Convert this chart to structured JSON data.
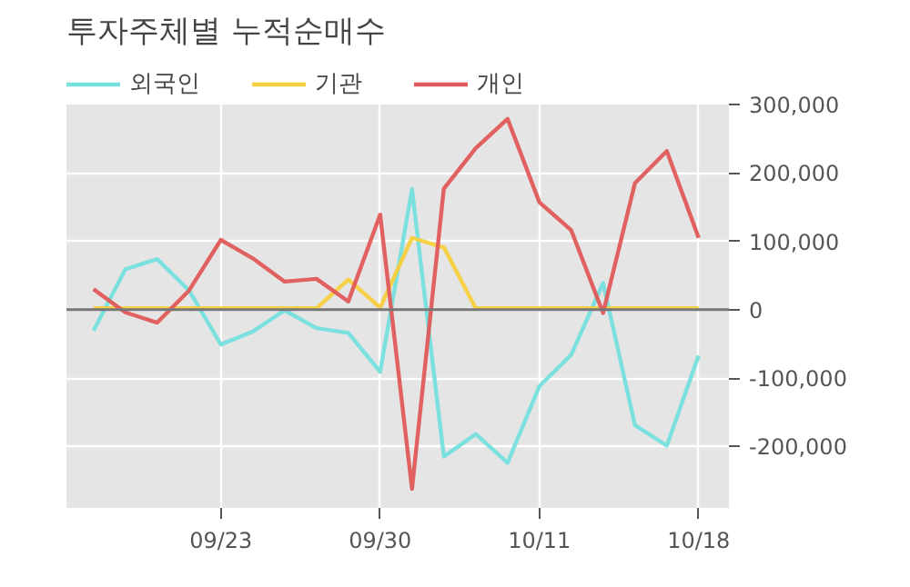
{
  "chart_data": {
    "type": "line",
    "title": "투자주체별 누적순매수",
    "categories": [
      null,
      null,
      null,
      null,
      "09/23",
      null,
      null,
      null,
      null,
      "09/30",
      null,
      null,
      null,
      null,
      "10/11",
      null,
      null,
      null,
      null,
      "10/18"
    ],
    "series": [
      {
        "name": "외국인",
        "color": "#76e0dd",
        "values": [
          -31000,
          59000,
          74000,
          28000,
          -51000,
          -32000,
          -1000,
          -27000,
          -34000,
          -91000,
          176000,
          -215000,
          -182000,
          -224000,
          -112000,
          -66000,
          39000,
          -169000,
          -199000,
          -67000
        ]
      },
      {
        "name": "기관",
        "color": "#f5cf3f",
        "values": [
          2000,
          2000,
          2000,
          2000,
          2000,
          2000,
          2000,
          2000,
          44000,
          3000,
          105000,
          91000,
          2000,
          2000,
          2000,
          2000,
          2000,
          2000,
          2000,
          2000
        ]
      },
      {
        "name": "개인",
        "color": "#e05a5a",
        "values": [
          30000,
          -4000,
          -19000,
          28000,
          102000,
          75000,
          41000,
          45000,
          12000,
          139000,
          -262000,
          177000,
          236000,
          279000,
          157000,
          116000,
          -5000,
          185000,
          232000,
          105000
        ]
      }
    ],
    "ylim": [
      -290000,
      300000
    ],
    "yticks": [
      {
        "value": -200000,
        "label": "-200,000"
      },
      {
        "value": -100000,
        "label": "-100,000"
      },
      0,
      {
        "value": 100000,
        "label": "100,000"
      },
      {
        "value": 200000,
        "label": "200,000"
      },
      {
        "value": 300000,
        "label": "300,000"
      }
    ],
    "ref_lines": [
      {
        "axis": "y",
        "value": 0,
        "color": "#777777"
      }
    ],
    "grid": true,
    "legend": "top left"
  }
}
